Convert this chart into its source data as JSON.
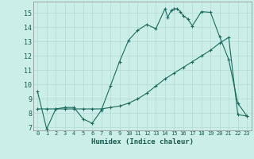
{
  "xlabel": "Humidex (Indice chaleur)",
  "bg_color": "#cceee8",
  "grid_color": "#b8ddd8",
  "line_color": "#1a6b5e",
  "xlim": [
    -0.5,
    23.5
  ],
  "ylim": [
    6.8,
    15.8
  ],
  "yticks": [
    7,
    8,
    9,
    10,
    11,
    12,
    13,
    14,
    15
  ],
  "xticks": [
    0,
    1,
    2,
    3,
    4,
    5,
    6,
    7,
    8,
    9,
    10,
    11,
    12,
    13,
    14,
    15,
    16,
    17,
    18,
    19,
    20,
    21,
    22,
    23
  ],
  "curve1_x": [
    0,
    1,
    2,
    3,
    4,
    5,
    6,
    7,
    8,
    9,
    10,
    11,
    12,
    13,
    14,
    14.3,
    14.7,
    15,
    15.3,
    15.7,
    16,
    16.5,
    17,
    18,
    19,
    20,
    21,
    22,
    23
  ],
  "curve1_y": [
    9.5,
    6.9,
    8.3,
    8.4,
    8.4,
    7.6,
    7.3,
    8.2,
    9.9,
    11.6,
    13.1,
    13.8,
    14.2,
    13.9,
    15.3,
    14.7,
    15.2,
    15.3,
    15.3,
    15.1,
    14.8,
    14.6,
    14.1,
    15.1,
    15.05,
    13.35,
    11.75,
    8.7,
    7.8
  ],
  "curve2_x": [
    0,
    1,
    2,
    3,
    4,
    5,
    6,
    7,
    8,
    9,
    10,
    11,
    12,
    13,
    14,
    15,
    16,
    17,
    18,
    19,
    20,
    21,
    22,
    23
  ],
  "curve2_y": [
    8.3,
    8.3,
    8.3,
    8.3,
    8.3,
    8.3,
    8.3,
    8.3,
    8.4,
    8.5,
    8.7,
    9.0,
    9.4,
    9.9,
    10.4,
    10.8,
    11.2,
    11.6,
    12.0,
    12.4,
    12.9,
    13.3,
    7.9,
    7.8
  ]
}
